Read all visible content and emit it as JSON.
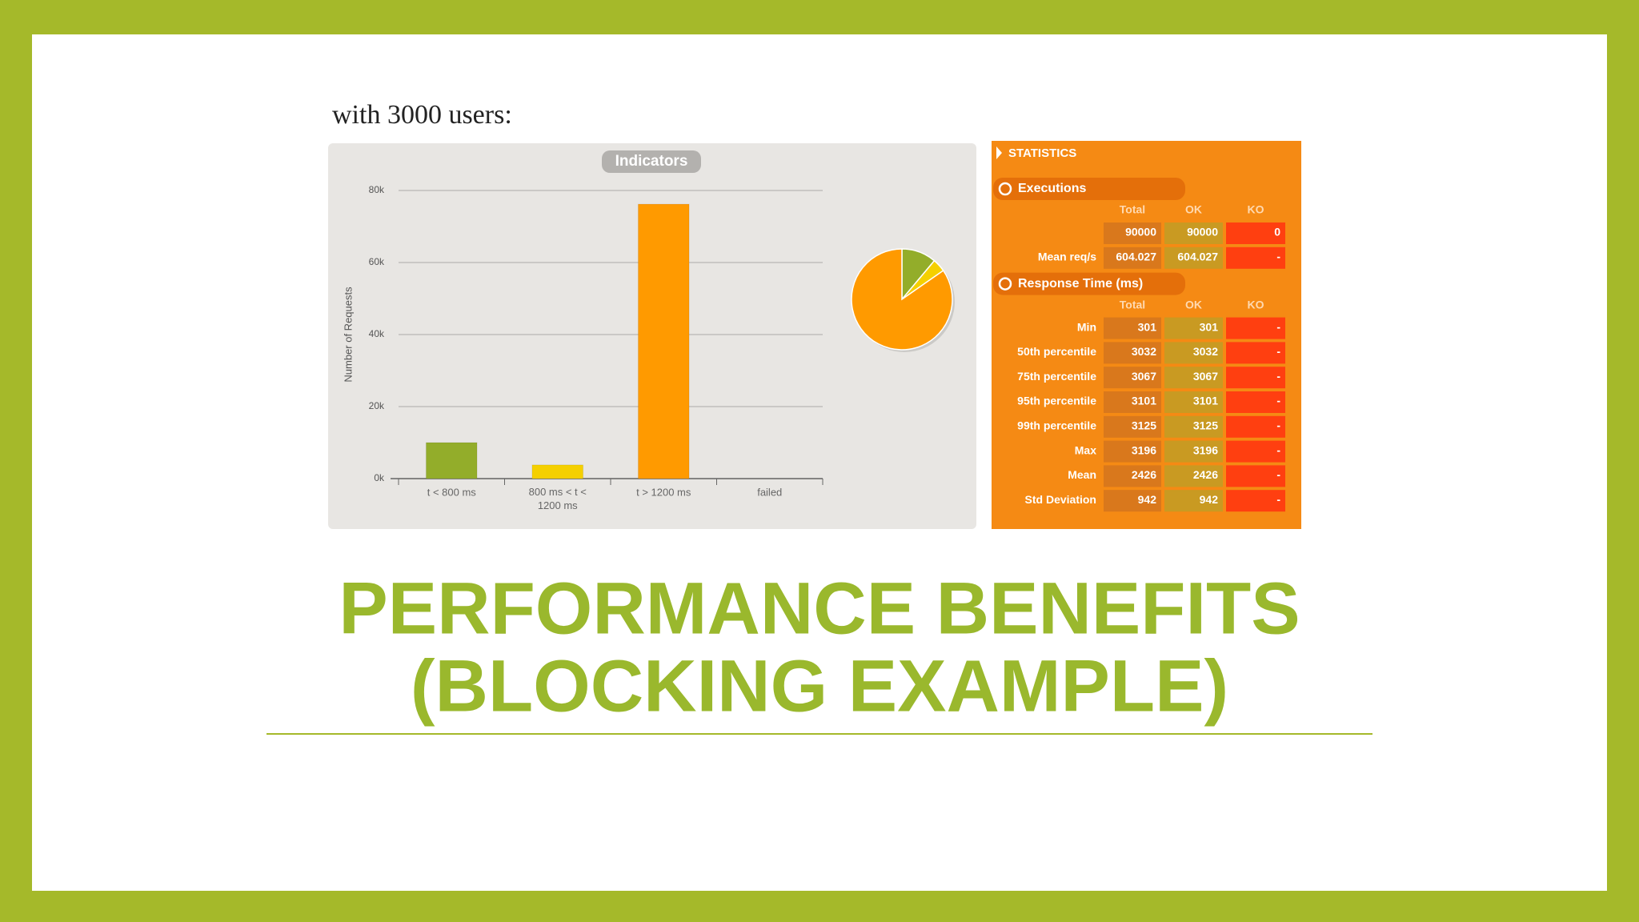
{
  "caption": "with 3000 users:",
  "chart_data": {
    "type": "bar",
    "title": "Indicators",
    "y_label": "Number of Requests",
    "categories": [
      "t < 800 ms",
      "800 ms < t < 1200 ms",
      "t > 1200 ms",
      "failed"
    ],
    "values": [
      10000,
      3800,
      76200,
      0
    ],
    "colors": [
      "#93ad2a",
      "#f5d000",
      "#ff9a00",
      "#e0301e"
    ],
    "ylim": [
      0,
      80000
    ],
    "yticks": [
      {
        "value": 0,
        "label": "0k"
      },
      {
        "value": 20000,
        "label": "20k"
      },
      {
        "value": 40000,
        "label": "40k"
      },
      {
        "value": 60000,
        "label": "60k"
      },
      {
        "value": 80000,
        "label": "80k"
      }
    ],
    "grid": true,
    "inset_pie": true
  },
  "statistics": {
    "title": "STATISTICS",
    "sections": [
      {
        "title": "Executions",
        "columns": [
          "Total",
          "OK",
          "KO"
        ],
        "rows": [
          {
            "label": null,
            "cells": [
              90000,
              90000,
              0
            ]
          },
          {
            "label": "Mean req/s",
            "cells": [
              604.027,
              604.027,
              "-"
            ]
          }
        ]
      },
      {
        "title": "Response Time (ms)",
        "columns": [
          "Total",
          "OK",
          "KO"
        ],
        "rows": [
          {
            "label": "Min",
            "cells": [
              301,
              301,
              "-"
            ]
          },
          {
            "label": "50th percentile",
            "cells": [
              3032,
              3032,
              "-"
            ]
          },
          {
            "label": "75th percentile",
            "cells": [
              3067,
              3067,
              "-"
            ]
          },
          {
            "label": "95th percentile",
            "cells": [
              3101,
              3101,
              "-"
            ]
          },
          {
            "label": "99th percentile",
            "cells": [
              3125,
              3125,
              "-"
            ]
          },
          {
            "label": "Max",
            "cells": [
              3196,
              3196,
              "-"
            ]
          },
          {
            "label": "Mean",
            "cells": [
              2426,
              2426,
              "-"
            ]
          },
          {
            "label": "Std Deviation",
            "cells": [
              942,
              942,
              "-"
            ]
          }
        ]
      }
    ]
  },
  "heading": {
    "lines": [
      "PERFORMANCE BENEFITS",
      "(BLOCKING EXAMPLE)"
    ]
  }
}
